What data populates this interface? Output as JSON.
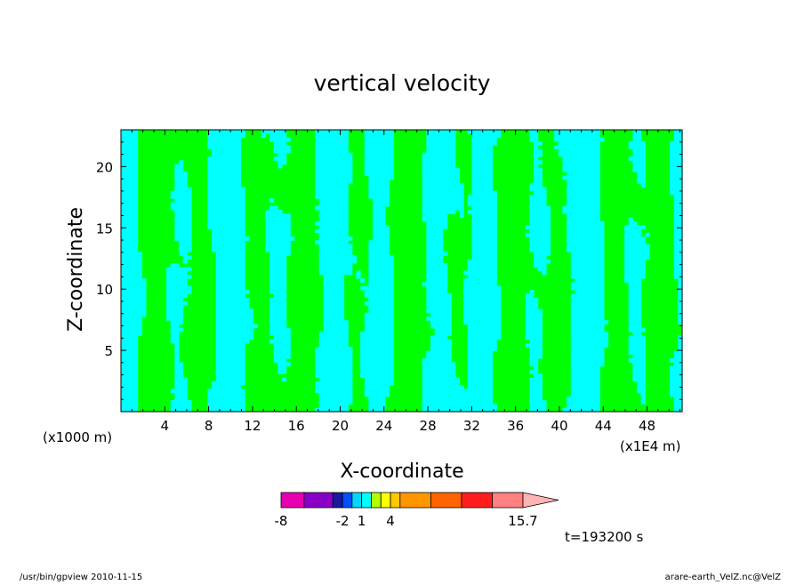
{
  "chart_data": {
    "type": "contour",
    "title": "vertical velocity",
    "xlabel": "X-coordinate",
    "ylabel": "Z-coordinate",
    "x_unit_left": "(x1000 m)",
    "x_unit_right": "(x1E4 m)",
    "xlim": [
      0,
      51.2
    ],
    "ylim": [
      0,
      23
    ],
    "x_ticks": [
      "4",
      "8",
      "12",
      "16",
      "20",
      "24",
      "28",
      "32",
      "36",
      "40",
      "44",
      "48"
    ],
    "y_ticks": [
      "5",
      "10",
      "15",
      "20"
    ],
    "series": [
      {
        "kind": "background",
        "color": "#00ff00",
        "interval": [
          1,
          4
        ]
      },
      {
        "kind": "contour",
        "color": "#00ffff",
        "interval": [
          -1,
          1
        ]
      }
    ],
    "colorbar": {
      "colors": [
        "#e600b0",
        "#8a00c8",
        "#1a1aa0",
        "#0050ff",
        "#00d8ff",
        "#00ffff",
        "#b0ff00",
        "#ffff00",
        "#ffc800",
        "#ff9600",
        "#ff6400",
        "#ff1e1e",
        "#ff8080",
        "#ffb4b4"
      ],
      "labels": [
        "-8",
        "-2",
        "1",
        "4",
        "15.7"
      ]
    },
    "time_label": "t=193200 s",
    "footer_left": "/usr/bin/gpview  2010-11-15",
    "footer_right": "arare-earth_VelZ.nc@VelZ"
  }
}
